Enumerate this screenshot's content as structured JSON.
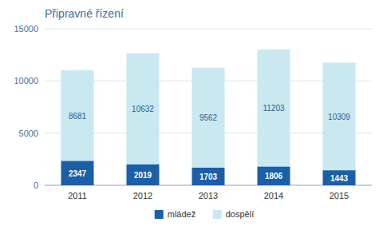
{
  "chart_data": {
    "type": "bar",
    "title": "Připravné řízení",
    "categories": [
      "2011",
      "2012",
      "2013",
      "2014",
      "2015"
    ],
    "series": [
      {
        "name": "mládež",
        "color": "#1a5fa8",
        "values": [
          2347,
          2019,
          1703,
          1806,
          1443
        ]
      },
      {
        "name": "dospělí",
        "color": "#c9e8f0",
        "values": [
          8681,
          10632,
          9562,
          11203,
          10309
        ]
      }
    ],
    "ylim": [
      0,
      15000
    ],
    "yticks": [
      0,
      5000,
      10000,
      15000
    ],
    "stacked": true,
    "grid": true,
    "data_labels": true,
    "legend": "bottom"
  }
}
